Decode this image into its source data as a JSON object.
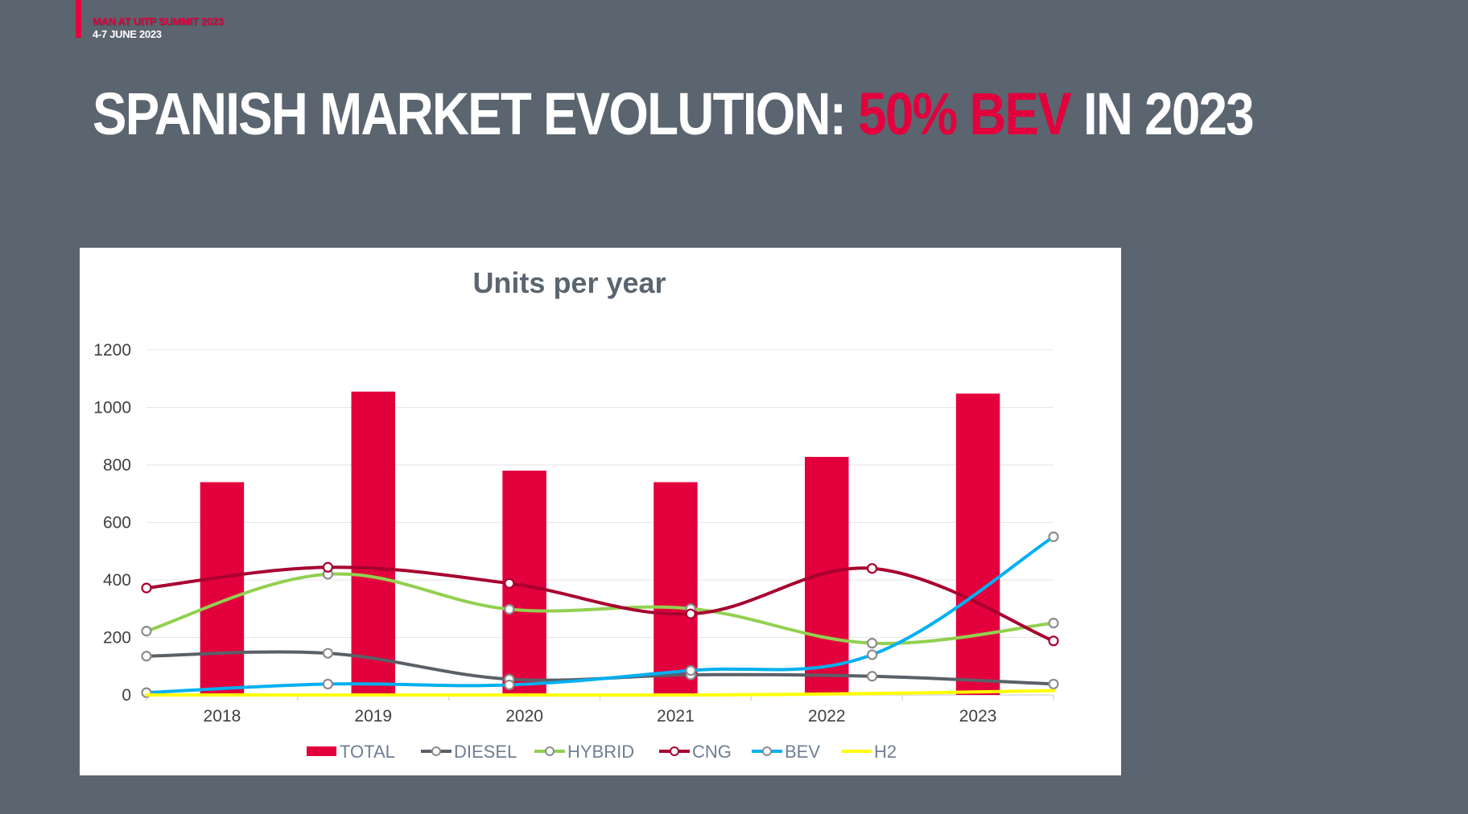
{
  "header": {
    "event": "MAN AT UITP SUMMIT 2023",
    "date": "4-7 JUNE 2023"
  },
  "slide_title": {
    "part1": "SPANISH MARKET EVOLUTION: ",
    "highlight": "50% BEV",
    "part2": " IN 2023"
  },
  "colors": {
    "background": "#5b6570",
    "accent": "#e2003d",
    "total": "#e2003d",
    "diesel": "#5a6068",
    "hybrid": "#92d050",
    "cng": "#a8002f",
    "bev": "#00b0f0",
    "h2": "#ffff00"
  },
  "chart_data": {
    "type": "bar",
    "title": "Units per year",
    "xlabel": "",
    "ylabel": "",
    "categories": [
      "2018",
      "2019",
      "2020",
      "2021",
      "2022",
      "2023"
    ],
    "ylim": [
      0,
      1200
    ],
    "yticks": [
      0,
      200,
      400,
      600,
      800,
      1000,
      1200
    ],
    "grid": true,
    "legend_position": "bottom",
    "series": [
      {
        "name": "TOTAL",
        "type": "bar",
        "color": "#e2003d",
        "values": [
          740,
          1055,
          780,
          740,
          828,
          1048
        ]
      },
      {
        "name": "DIESEL",
        "type": "line",
        "color": "#5a6068",
        "marker": "#d9d9d9",
        "x": [
          -0.5,
          0.7,
          1.9,
          3.1,
          4.3,
          5.5
        ],
        "values": [
          135,
          145,
          55,
          70,
          65,
          38
        ]
      },
      {
        "name": "HYBRID",
        "type": "line",
        "color": "#92d050",
        "marker": "#d9d9d9",
        "x": [
          -0.5,
          0.7,
          1.9,
          3.1,
          4.3,
          5.5
        ],
        "values": [
          222,
          420,
          298,
          300,
          180,
          250
        ]
      },
      {
        "name": "CNG",
        "type": "line",
        "color": "#a8002f",
        "marker": "#ffffff",
        "x": [
          -0.5,
          0.7,
          1.9,
          3.1,
          4.3,
          5.5
        ],
        "values": [
          372,
          444,
          388,
          282,
          440,
          188
        ]
      },
      {
        "name": "BEV",
        "type": "line",
        "color": "#00b0f0",
        "marker": "#d9d9d9",
        "x": [
          -0.5,
          0.7,
          1.9,
          3.1,
          4.3,
          5.5
        ],
        "values": [
          8,
          38,
          35,
          85,
          140,
          550
        ]
      },
      {
        "name": "H2",
        "type": "line",
        "color": "#ffff00",
        "x": [
          -0.5,
          0.7,
          1.9,
          3.1,
          4.3,
          5.5
        ],
        "values": [
          0,
          0,
          0,
          0,
          5,
          15
        ]
      }
    ]
  }
}
